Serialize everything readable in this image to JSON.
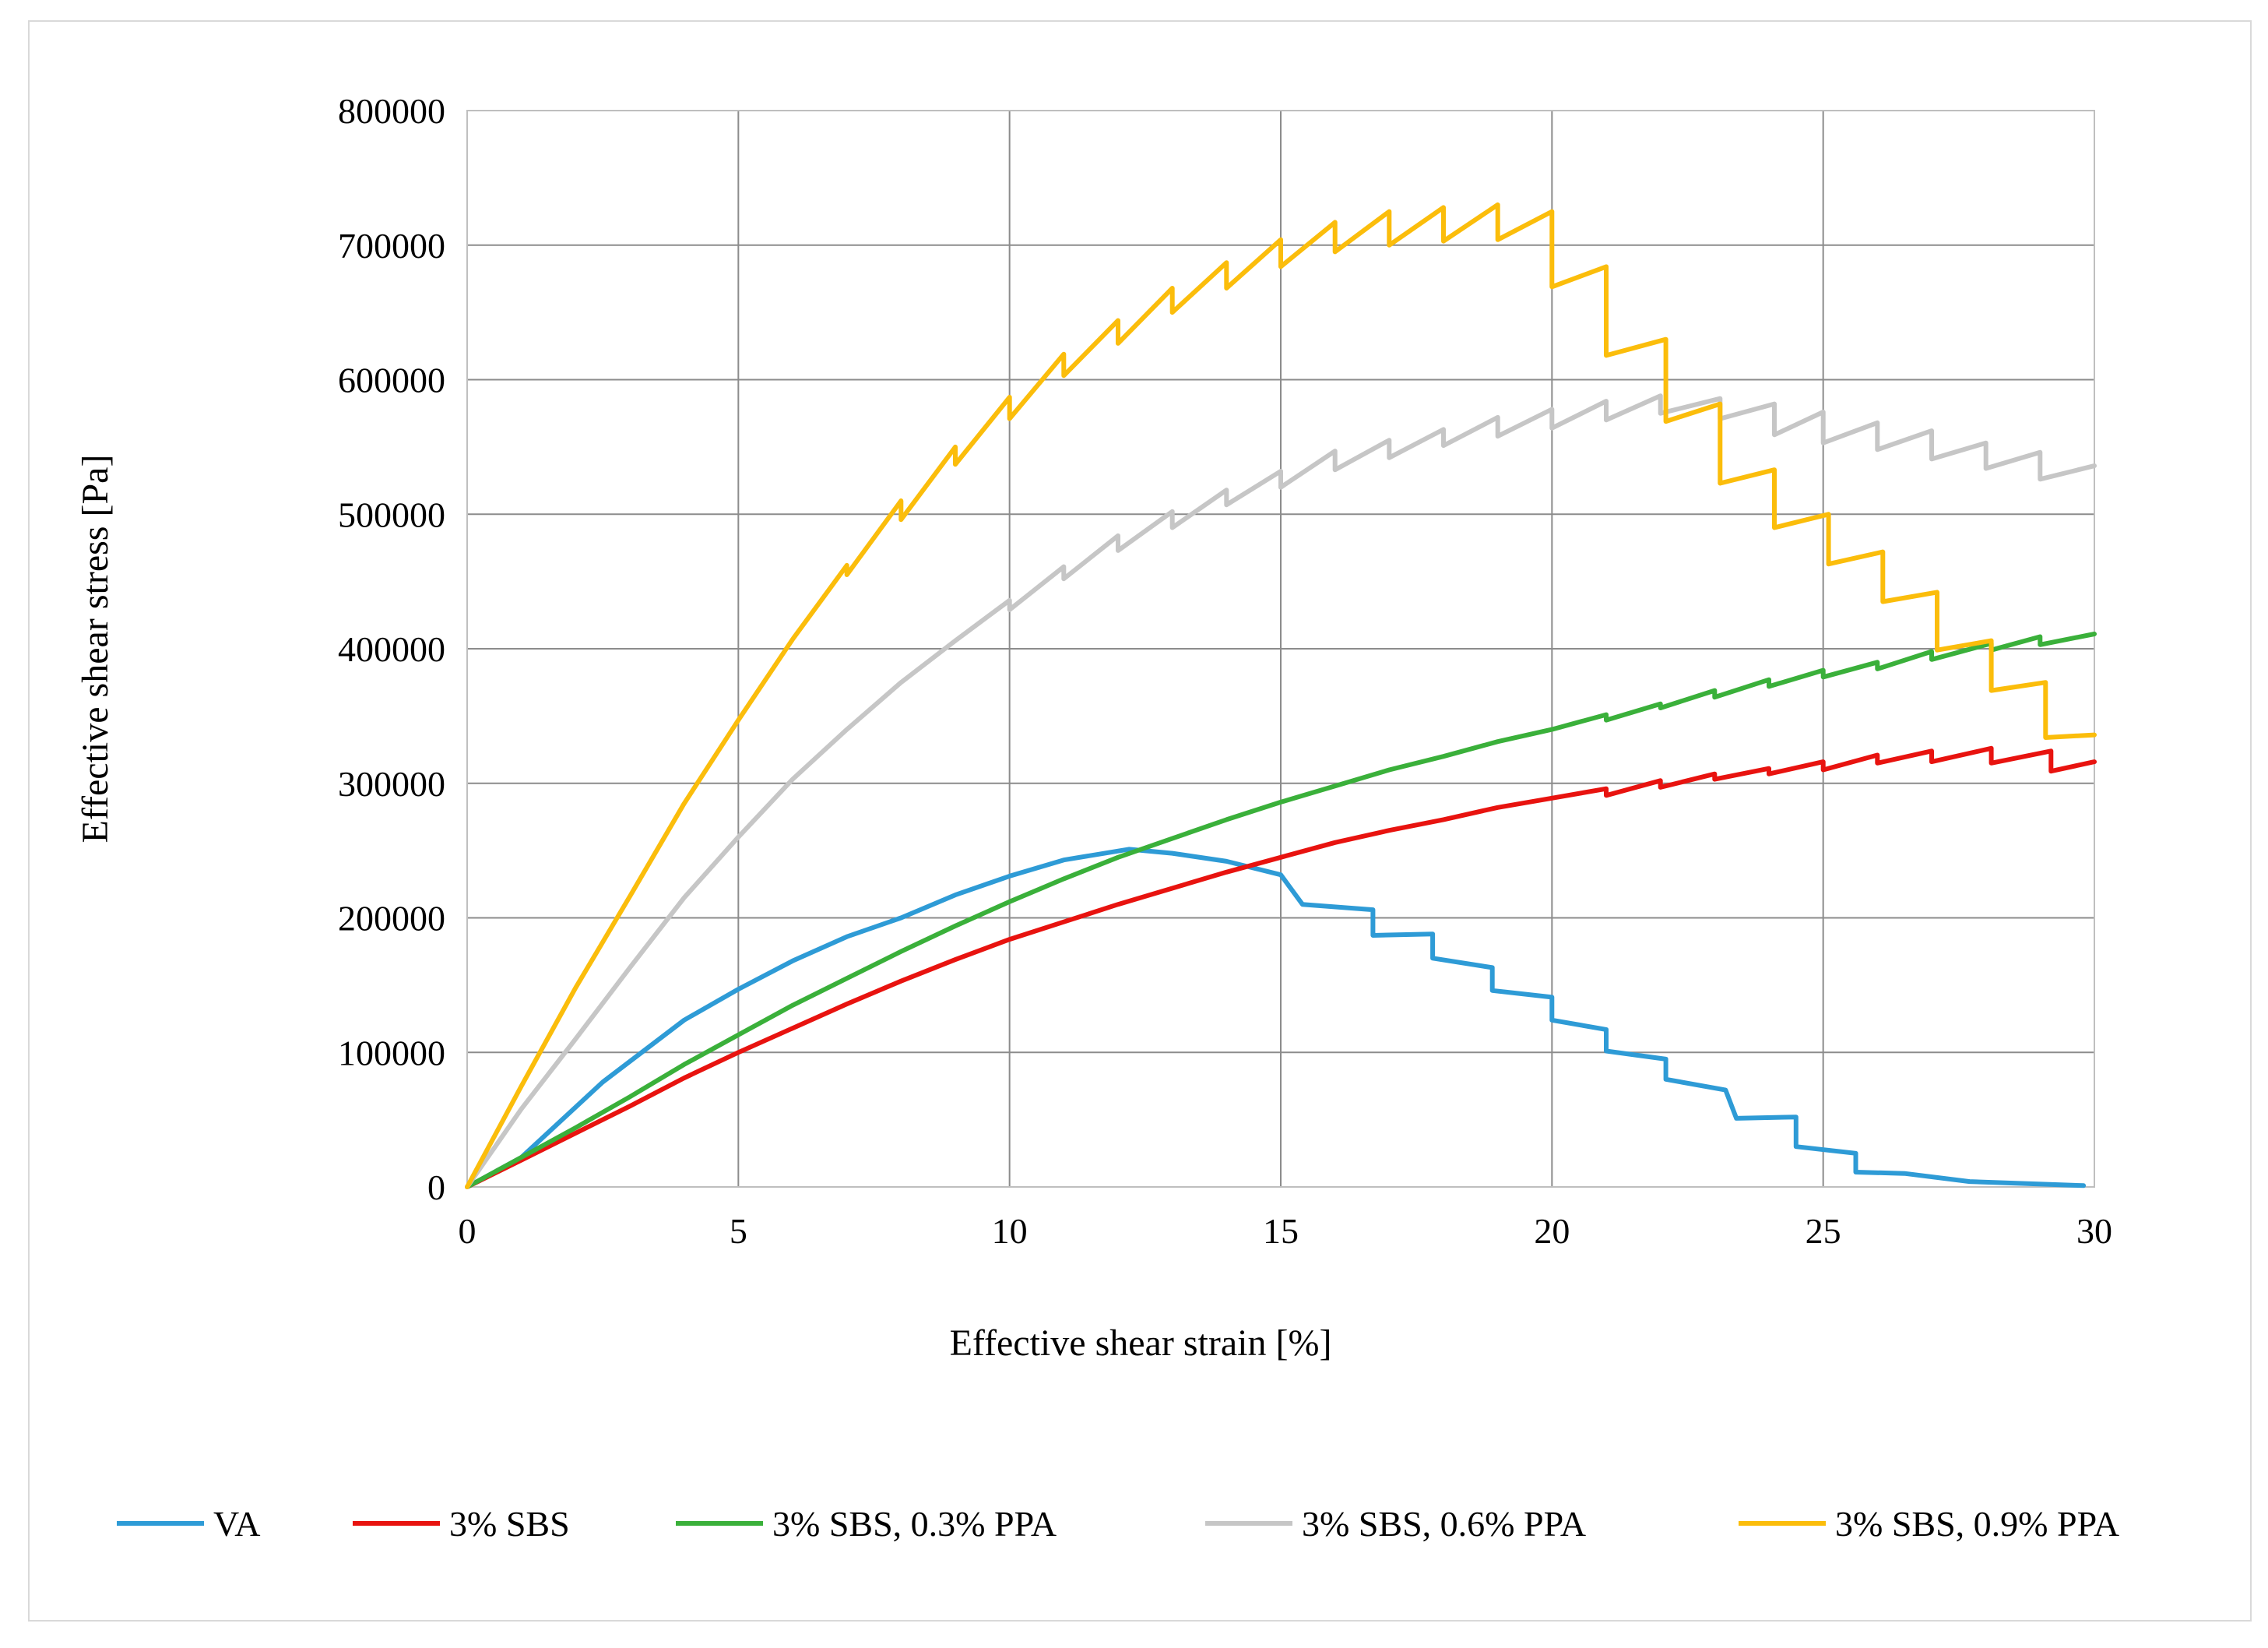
{
  "chart_data": {
    "type": "line",
    "title": "",
    "xlabel": "Effective shear strain [%]",
    "ylabel": "Effective shear stress [Pa]",
    "xlim": [
      0,
      30
    ],
    "ylim": [
      0,
      800000
    ],
    "xticks": [
      0,
      5,
      10,
      15,
      20,
      25,
      30
    ],
    "yticks": [
      0,
      100000,
      200000,
      300000,
      400000,
      500000,
      600000,
      700000,
      800000
    ],
    "xtick_labels": [
      "0",
      "5",
      "10",
      "15",
      "20",
      "25",
      "30"
    ],
    "ytick_labels": [
      "0",
      "100000",
      "200000",
      "300000",
      "400000",
      "500000",
      "600000",
      "700000",
      "800000"
    ],
    "grid": true,
    "legend_position": "bottom",
    "series": [
      {
        "name": "VA",
        "color": "#2e9bd6",
        "points": [
          [
            0,
            0
          ],
          [
            1,
            22000
          ],
          [
            2.5,
            78000
          ],
          [
            4,
            124000
          ],
          [
            5,
            147000
          ],
          [
            6,
            168000
          ],
          [
            7,
            186000
          ],
          [
            8,
            200000
          ],
          [
            9,
            217000
          ],
          [
            10,
            231000
          ],
          [
            11,
            243000
          ],
          [
            12.2,
            251000
          ],
          [
            13,
            248000
          ],
          [
            14,
            242000
          ],
          [
            15,
            232000
          ],
          [
            15.4,
            210000
          ],
          [
            16.7,
            206000
          ],
          [
            16.7,
            187000
          ],
          [
            17.8,
            188000
          ],
          [
            17.8,
            170000
          ],
          [
            18.9,
            163000
          ],
          [
            18.9,
            146000
          ],
          [
            20,
            141000
          ],
          [
            20,
            124000
          ],
          [
            21,
            117000
          ],
          [
            21,
            101000
          ],
          [
            22.1,
            95000
          ],
          [
            22.1,
            80000
          ],
          [
            23.2,
            72000
          ],
          [
            23.4,
            51000
          ],
          [
            24.5,
            52000
          ],
          [
            24.5,
            30000
          ],
          [
            25.6,
            25000
          ],
          [
            25.6,
            11000
          ],
          [
            26.5,
            10000
          ],
          [
            27.7,
            4000
          ],
          [
            29.8,
            1000
          ]
        ]
      },
      {
        "name": "3% SBS",
        "color": "#e8130f",
        "points": [
          [
            0,
            0
          ],
          [
            1,
            20000
          ],
          [
            2,
            40000
          ],
          [
            3,
            60000
          ],
          [
            4,
            81000
          ],
          [
            5,
            100000
          ],
          [
            6,
            118000
          ],
          [
            7,
            136000
          ],
          [
            8,
            153000
          ],
          [
            9,
            169000
          ],
          [
            10,
            184000
          ],
          [
            11,
            197000
          ],
          [
            12,
            210000
          ],
          [
            13,
            222000
          ],
          [
            14,
            234000
          ],
          [
            15,
            245000
          ],
          [
            16,
            256000
          ],
          [
            17,
            265000
          ],
          [
            18,
            273000
          ],
          [
            19,
            282000
          ],
          [
            20,
            289000
          ],
          [
            21,
            296000
          ],
          [
            21,
            291000
          ],
          [
            22,
            302000
          ],
          [
            22,
            297000
          ],
          [
            23,
            307000
          ],
          [
            23,
            303000
          ],
          [
            24,
            311000
          ],
          [
            24,
            307000
          ],
          [
            25,
            316000
          ],
          [
            25,
            310000
          ],
          [
            26,
            321000
          ],
          [
            26,
            315000
          ],
          [
            27,
            324000
          ],
          [
            27,
            316000
          ],
          [
            28.1,
            326000
          ],
          [
            28.1,
            315000
          ],
          [
            29.2,
            324000
          ],
          [
            29.2,
            309000
          ],
          [
            30,
            316000
          ]
        ]
      },
      {
        "name": "3% SBS, 0.3% PPA",
        "color": "#3ab03a",
        "points": [
          [
            0,
            0
          ],
          [
            1,
            22000
          ],
          [
            2,
            44000
          ],
          [
            3,
            67000
          ],
          [
            4,
            91000
          ],
          [
            5,
            113000
          ],
          [
            6,
            135000
          ],
          [
            7,
            155000
          ],
          [
            8,
            175000
          ],
          [
            9,
            194000
          ],
          [
            10,
            212000
          ],
          [
            11,
            229000
          ],
          [
            12,
            245000
          ],
          [
            13,
            259000
          ],
          [
            14,
            273000
          ],
          [
            15,
            286000
          ],
          [
            16,
            298000
          ],
          [
            17,
            310000
          ],
          [
            18,
            320000
          ],
          [
            19,
            331000
          ],
          [
            20,
            340000
          ],
          [
            21,
            351000
          ],
          [
            21,
            347000
          ],
          [
            22,
            359000
          ],
          [
            22,
            356000
          ],
          [
            23,
            369000
          ],
          [
            23,
            364000
          ],
          [
            24,
            377000
          ],
          [
            24,
            372000
          ],
          [
            25,
            384000
          ],
          [
            25,
            379000
          ],
          [
            26,
            390000
          ],
          [
            26,
            385000
          ],
          [
            27,
            398000
          ],
          [
            27,
            392000
          ],
          [
            28.1,
            404000
          ],
          [
            28.1,
            399000
          ],
          [
            29,
            409000
          ],
          [
            29,
            403000
          ],
          [
            30,
            411000
          ]
        ]
      },
      {
        "name": "3% SBS, 0.6% PPA",
        "color": "#c6c6c6",
        "points": [
          [
            0,
            0
          ],
          [
            1,
            58000
          ],
          [
            2,
            110000
          ],
          [
            3,
            163000
          ],
          [
            4,
            215000
          ],
          [
            5,
            260000
          ],
          [
            6,
            303000
          ],
          [
            7,
            340000
          ],
          [
            8,
            375000
          ],
          [
            9,
            406000
          ],
          [
            10,
            436000
          ],
          [
            10,
            429000
          ],
          [
            11,
            461000
          ],
          [
            11,
            452000
          ],
          [
            12,
            484000
          ],
          [
            12,
            473000
          ],
          [
            13,
            502000
          ],
          [
            13,
            490000
          ],
          [
            14,
            518000
          ],
          [
            14,
            507000
          ],
          [
            15,
            532000
          ],
          [
            15,
            520000
          ],
          [
            16,
            547000
          ],
          [
            16,
            533000
          ],
          [
            17,
            555000
          ],
          [
            17,
            542000
          ],
          [
            18,
            563000
          ],
          [
            18,
            551000
          ],
          [
            19,
            572000
          ],
          [
            19,
            558000
          ],
          [
            20,
            578000
          ],
          [
            20,
            564000
          ],
          [
            21,
            584000
          ],
          [
            21,
            570000
          ],
          [
            22,
            588000
          ],
          [
            22,
            575000
          ],
          [
            23.1,
            586000
          ],
          [
            23.1,
            571000
          ],
          [
            24.1,
            582000
          ],
          [
            24.1,
            559000
          ],
          [
            25,
            576000
          ],
          [
            25,
            553000
          ],
          [
            26,
            568000
          ],
          [
            26,
            548000
          ],
          [
            27,
            562000
          ],
          [
            27,
            541000
          ],
          [
            28,
            553000
          ],
          [
            28,
            534000
          ],
          [
            29,
            546000
          ],
          [
            29,
            526000
          ],
          [
            30,
            536000
          ]
        ]
      },
      {
        "name": "3% SBS, 0.9% PPA",
        "color": "#fbbd0b",
        "points": [
          [
            0,
            0
          ],
          [
            1,
            75000
          ],
          [
            2,
            148000
          ],
          [
            3,
            216000
          ],
          [
            4,
            285000
          ],
          [
            5,
            347000
          ],
          [
            6,
            407000
          ],
          [
            7,
            462000
          ],
          [
            7,
            455000
          ],
          [
            8,
            510000
          ],
          [
            8,
            496000
          ],
          [
            9,
            550000
          ],
          [
            9,
            537000
          ],
          [
            10,
            587000
          ],
          [
            10,
            571000
          ],
          [
            11,
            619000
          ],
          [
            11,
            603000
          ],
          [
            12,
            644000
          ],
          [
            12,
            627000
          ],
          [
            13,
            668000
          ],
          [
            13,
            650000
          ],
          [
            14,
            687000
          ],
          [
            14,
            668000
          ],
          [
            15,
            704000
          ],
          [
            15,
            684000
          ],
          [
            16,
            717000
          ],
          [
            16,
            695000
          ],
          [
            17,
            725000
          ],
          [
            17,
            700000
          ],
          [
            18,
            728000
          ],
          [
            18,
            703000
          ],
          [
            19,
            730000
          ],
          [
            19,
            704000
          ],
          [
            20,
            725000
          ],
          [
            20,
            669000
          ],
          [
            21,
            684000
          ],
          [
            21,
            618000
          ],
          [
            22.1,
            630000
          ],
          [
            22.1,
            569000
          ],
          [
            23.1,
            582000
          ],
          [
            23.1,
            523000
          ],
          [
            24.1,
            533000
          ],
          [
            24.1,
            490000
          ],
          [
            25.1,
            500000
          ],
          [
            25.1,
            463000
          ],
          [
            26.1,
            472000
          ],
          [
            26.1,
            435000
          ],
          [
            27.1,
            442000
          ],
          [
            27.1,
            399000
          ],
          [
            28.1,
            406000
          ],
          [
            28.1,
            369000
          ],
          [
            29.1,
            375000
          ],
          [
            29.1,
            334000
          ],
          [
            30,
            336000
          ]
        ]
      }
    ]
  }
}
